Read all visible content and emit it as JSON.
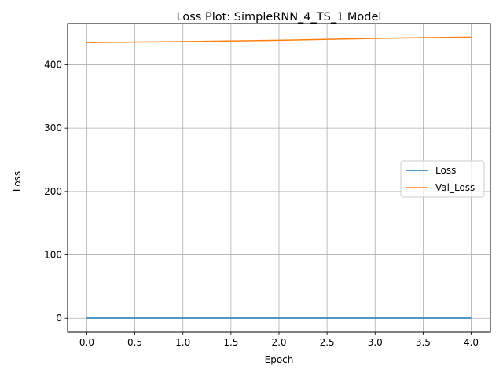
{
  "chart_data": {
    "type": "line",
    "title": "Loss Plot: SimpleRNN_4_TS_1 Model",
    "xlabel": "Epoch",
    "ylabel": "Loss",
    "x": [
      0,
      1,
      2,
      3,
      4
    ],
    "xlim": [
      -0.2,
      4.2
    ],
    "ylim": [
      -22,
      465
    ],
    "xticks": [
      0.0,
      0.5,
      1.0,
      1.5,
      2.0,
      2.5,
      3.0,
      3.5,
      4.0
    ],
    "xtick_labels": [
      "0.0",
      "0.5",
      "1.0",
      "1.5",
      "2.0",
      "2.5",
      "3.0",
      "3.5",
      "4.0"
    ],
    "yticks": [
      0,
      100,
      200,
      300,
      400
    ],
    "ytick_labels": [
      "0",
      "100",
      "200",
      "300",
      "400"
    ],
    "grid": true,
    "legend_position": "center-right",
    "series": [
      {
        "name": "Loss",
        "color": "#1f77b4",
        "values": [
          0.3,
          0.3,
          0.3,
          0.3,
          0.3
        ]
      },
      {
        "name": "Val_Loss",
        "color": "#ff7f0e",
        "values": [
          435,
          436.5,
          438.5,
          441.5,
          443.5
        ]
      }
    ]
  }
}
